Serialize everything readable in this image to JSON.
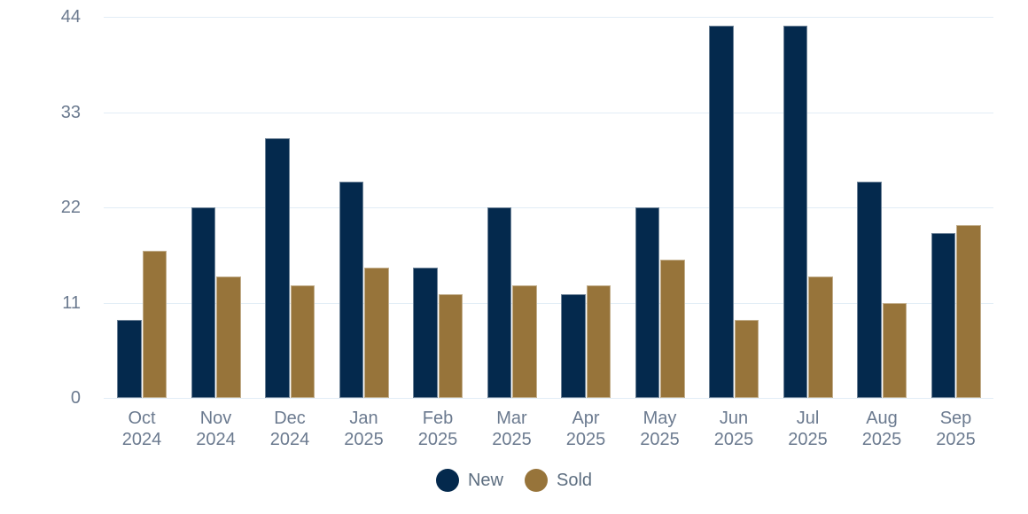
{
  "chart_data": {
    "type": "bar",
    "title": "",
    "categories": [
      {
        "month": "Oct",
        "year": "2024"
      },
      {
        "month": "Nov",
        "year": "2024"
      },
      {
        "month": "Dec",
        "year": "2024"
      },
      {
        "month": "Jan",
        "year": "2025"
      },
      {
        "month": "Feb",
        "year": "2025"
      },
      {
        "month": "Mar",
        "year": "2025"
      },
      {
        "month": "Apr",
        "year": "2025"
      },
      {
        "month": "May",
        "year": "2025"
      },
      {
        "month": "Jun",
        "year": "2025"
      },
      {
        "month": "Jul",
        "year": "2025"
      },
      {
        "month": "Aug",
        "year": "2025"
      },
      {
        "month": "Sep",
        "year": "2025"
      }
    ],
    "series": [
      {
        "name": "New",
        "color": "#04294d",
        "values": [
          9,
          22,
          30,
          25,
          15,
          22,
          12,
          22,
          43,
          43,
          25,
          19
        ]
      },
      {
        "name": "Sold",
        "color": "#97743a",
        "values": [
          17,
          14,
          13,
          15,
          12,
          13,
          13,
          16,
          9,
          14,
          11,
          20
        ]
      }
    ],
    "ylim": [
      0,
      44
    ],
    "yticks": [
      0,
      11,
      22,
      33,
      44
    ],
    "grid": true,
    "legend_position": "bottom"
  },
  "colors": {
    "gridline": "#e2edf6",
    "axis_text": "#6b7a8f",
    "legend_text": "#5d6e80",
    "background": "#ffffff"
  }
}
